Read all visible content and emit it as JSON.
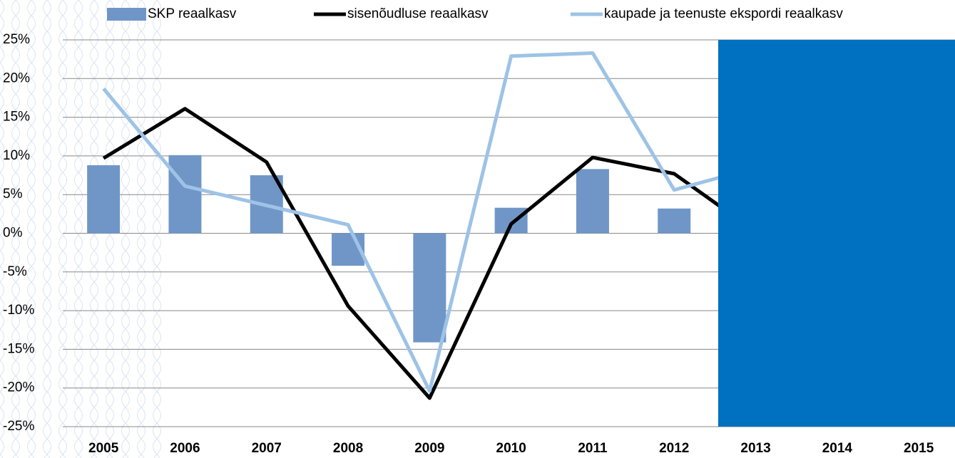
{
  "chart_data": {
    "type": "bar-line",
    "categories": [
      "2005",
      "2006",
      "2007",
      "2008",
      "2009",
      "2010",
      "2011",
      "2012",
      "2013",
      "2014",
      "2015"
    ],
    "series": [
      {
        "name": "SKP reaalkasv",
        "type": "bar",
        "color": "#7096c8",
        "values": [
          8.8,
          10.1,
          7.5,
          -4.2,
          -14.1,
          3.3,
          8.3,
          3.2,
          null,
          null,
          null
        ]
      },
      {
        "name": "sisenõudluse reaalkasv",
        "type": "line",
        "color": "#000000",
        "values": [
          9.7,
          16.1,
          9.2,
          -9.4,
          -21.3,
          1.2,
          9.8,
          7.7,
          0.2,
          null,
          null
        ]
      },
      {
        "name": "kaupade ja teenuste ekspordi reaalkasv",
        "type": "line",
        "color": "#9dc3e6",
        "values": [
          18.7,
          6.1,
          3.6,
          1.1,
          -20.4,
          22.9,
          23.3,
          5.6,
          8.5,
          null,
          null
        ]
      }
    ],
    "ylim": [
      -25,
      25
    ],
    "yticks": [
      {
        "value": -25,
        "label": "-25%"
      },
      {
        "value": -20,
        "label": "-20%"
      },
      {
        "value": -15,
        "label": "-15%"
      },
      {
        "value": -10,
        "label": "-10%"
      },
      {
        "value": -5,
        "label": "-5%"
      },
      {
        "value": 0,
        "label": "0%"
      },
      {
        "value": 5,
        "label": "5%"
      },
      {
        "value": 10,
        "label": "10%"
      },
      {
        "value": 15,
        "label": "15%"
      },
      {
        "value": 20,
        "label": "20%"
      },
      {
        "value": 25,
        "label": "25%"
      }
    ],
    "grid": true,
    "legend": "top"
  }
}
